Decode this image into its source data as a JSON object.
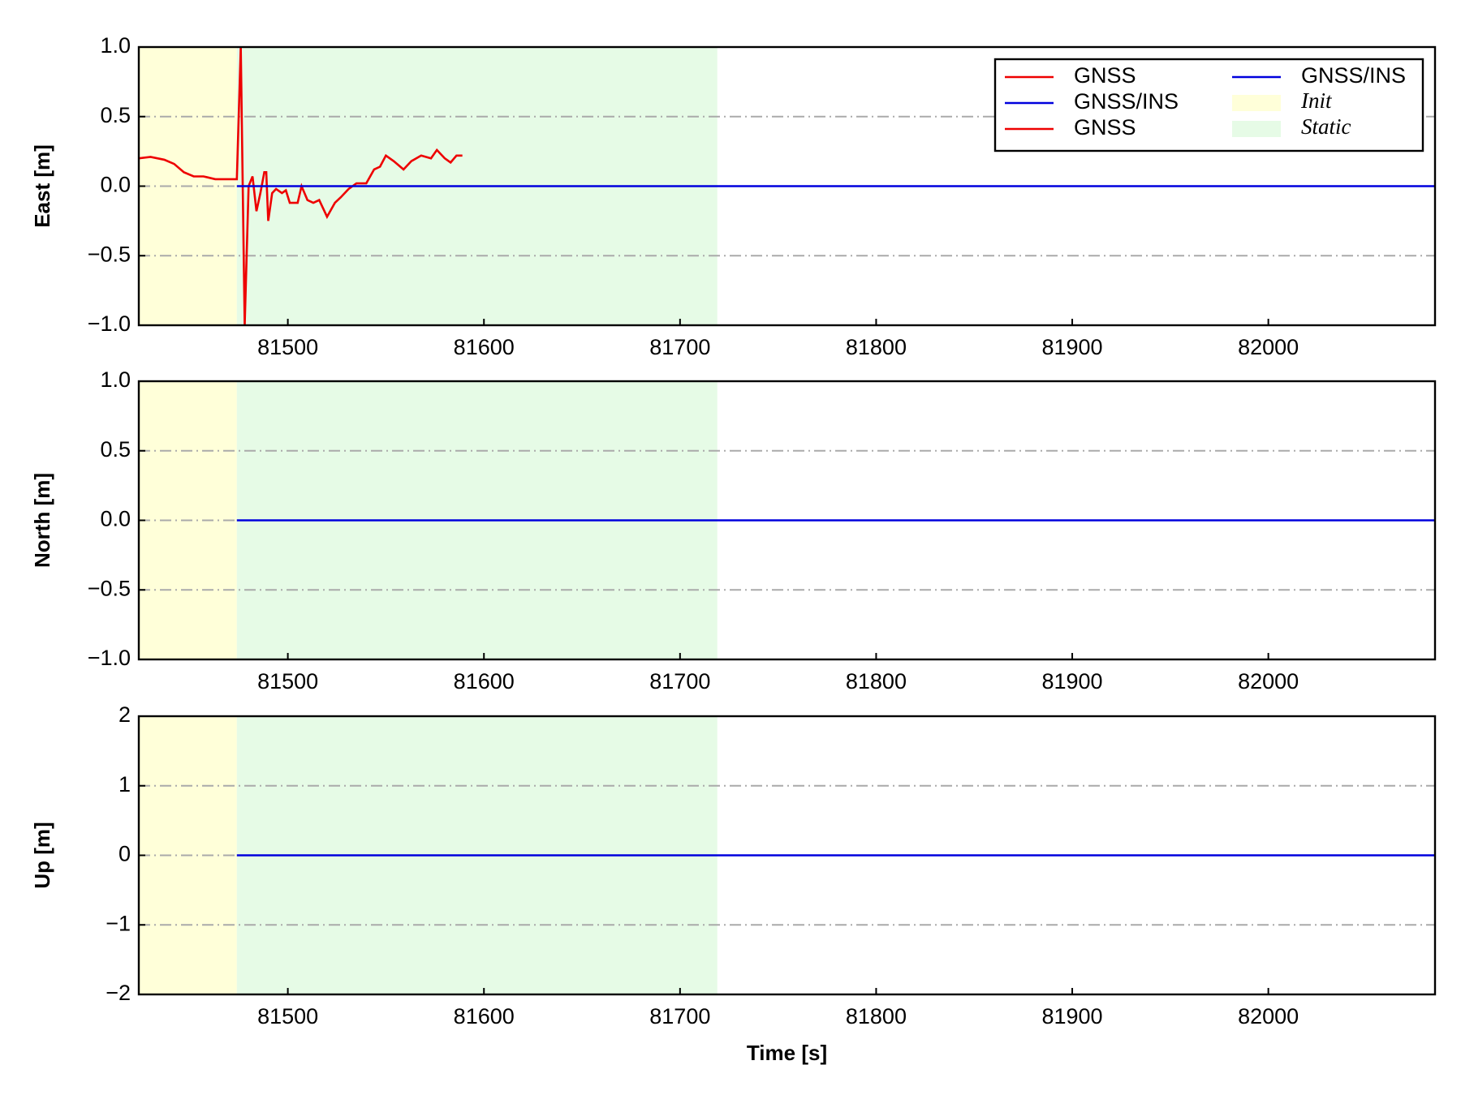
{
  "chart_data": [
    {
      "type": "line",
      "ylabel": "East [m]",
      "xlim": [
        81424,
        82085
      ],
      "ylim": [
        -1,
        1
      ],
      "xticks": [
        81500,
        81600,
        81700,
        81800,
        81900,
        82000
      ],
      "yticks": [
        {
          "value": -1,
          "label": "−1.0"
        },
        {
          "value": -0.5,
          "label": "−0.5"
        },
        {
          "value": 0,
          "label": "0.0"
        },
        0.5,
        {
          "value": 1,
          "label": "1.0"
        }
      ],
      "grid": true,
      "legend": "upper right",
      "spans": [
        {
          "name": "Init",
          "color": "#ffffd9",
          "x": [
            81424,
            81474
          ]
        },
        {
          "name": "Static",
          "color": "#e6fbe6",
          "x": [
            81474,
            81719
          ]
        }
      ],
      "series": [
        {
          "name": "GNSS",
          "color": "#ee0000",
          "x": [
            81424,
            81430,
            81437,
            81442,
            81447,
            81452,
            81457,
            81463,
            81469,
            81474,
            81476,
            81478,
            81480,
            81482,
            81484,
            81486,
            81488,
            81489,
            81490,
            81492,
            81494,
            81497,
            81499,
            81501,
            81505,
            81507,
            81510,
            81513,
            81516,
            81520,
            81524,
            81527,
            81531,
            81535,
            81540,
            81544,
            81547,
            81550,
            81554,
            81559,
            81563,
            81568,
            81573,
            81576,
            81580,
            81583,
            81586,
            81589
          ],
          "values": [
            0.2,
            0.21,
            0.19,
            0.16,
            0.1,
            0.07,
            0.07,
            0.05,
            0.05,
            0.05,
            1.0,
            -1.0,
            0.0,
            0.07,
            -0.18,
            -0.05,
            0.1,
            0.1,
            -0.25,
            -0.05,
            -0.02,
            -0.05,
            -0.03,
            -0.12,
            -0.12,
            0.0,
            -0.1,
            -0.12,
            -0.1,
            -0.22,
            -0.12,
            -0.08,
            -0.02,
            0.02,
            0.02,
            0.12,
            0.14,
            0.22,
            0.18,
            0.12,
            0.18,
            0.22,
            0.2,
            0.26,
            0.2,
            0.17,
            0.22,
            0.22
          ]
        },
        {
          "name": "GNSS/INS",
          "color": "#0000dd",
          "x": [
            81474,
            82085
          ],
          "values": [
            0,
            0
          ]
        },
        {
          "name": "GNSS",
          "color": "#ee0000",
          "x": [],
          "values": []
        },
        {
          "name": "GNSS/INS",
          "color": "#0000dd",
          "x": [],
          "values": []
        }
      ]
    },
    {
      "type": "line",
      "ylabel": "North [m]",
      "xlim": [
        81424,
        82085
      ],
      "ylim": [
        -1,
        1
      ],
      "xticks": [
        81500,
        81600,
        81700,
        81800,
        81900,
        82000
      ],
      "yticks": [
        {
          "value": -1,
          "label": "−1.0"
        },
        {
          "value": -0.5,
          "label": "−0.5"
        },
        {
          "value": 0,
          "label": "0.0"
        },
        0.5,
        {
          "value": 1,
          "label": "1.0"
        }
      ],
      "grid": true,
      "spans": [
        {
          "color": "#ffffd9",
          "x": [
            81424,
            81474
          ]
        },
        {
          "color": "#e6fbe6",
          "x": [
            81474,
            81719
          ]
        }
      ],
      "series": [
        {
          "color": "#0000dd",
          "x": [
            81474,
            82085
          ],
          "values": [
            0,
            0
          ]
        }
      ]
    },
    {
      "type": "line",
      "ylabel": "Up [m]",
      "xlabel": "Time [s]",
      "xlim": [
        81424,
        82085
      ],
      "ylim": [
        -2,
        2
      ],
      "xticks": [
        81500,
        81600,
        81700,
        81800,
        81900,
        82000
      ],
      "yticks": [
        {
          "value": -2,
          "label": "−2"
        },
        {
          "value": -1,
          "label": "−1"
        },
        0,
        1,
        2
      ],
      "grid": true,
      "spans": [
        {
          "color": "#ffffd9",
          "x": [
            81424,
            81474
          ]
        },
        {
          "color": "#e6fbe6",
          "x": [
            81474,
            81719
          ]
        }
      ],
      "series": [
        {
          "color": "#0000dd",
          "x": [
            81474,
            82085
          ],
          "values": [
            0,
            0
          ]
        }
      ]
    }
  ]
}
